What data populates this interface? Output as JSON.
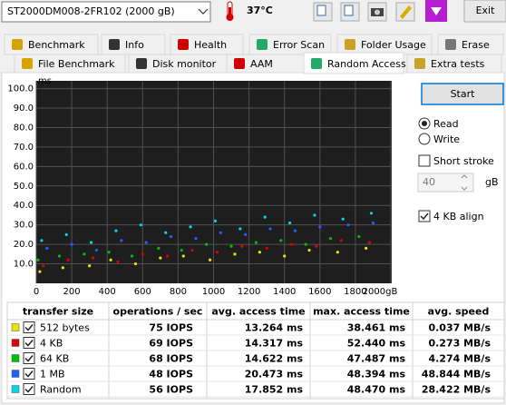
{
  "toolbar": {
    "drive": "ST2000DM008-2FR102 (2000 gB)",
    "temperature": "37°C",
    "exit": "Exit"
  },
  "tabs": {
    "row1": [
      {
        "label": "Benchmark",
        "selected": false
      },
      {
        "label": "Info",
        "selected": false
      },
      {
        "label": "Health",
        "selected": false
      },
      {
        "label": "Error Scan",
        "selected": false
      },
      {
        "label": "Folder Usage",
        "selected": false
      },
      {
        "label": "Erase",
        "selected": false
      }
    ],
    "row2": [
      {
        "label": "File Benchmark",
        "selected": false
      },
      {
        "label": "Disk monitor",
        "selected": false
      },
      {
        "label": "AAM",
        "selected": false
      },
      {
        "label": "Random Access",
        "selected": true
      },
      {
        "label": "Extra tests",
        "selected": false
      }
    ]
  },
  "chart_data": {
    "type": "scatter",
    "y_label": "ms",
    "xlim": [
      0,
      2000
    ],
    "ylim": [
      0,
      104
    ],
    "grid": true,
    "yticks": [
      {
        "value": 10,
        "label": "10.0"
      },
      {
        "value": 20,
        "label": "20.0"
      },
      {
        "value": 30,
        "label": "30.0"
      },
      {
        "value": 40,
        "label": "40.0"
      },
      {
        "value": 50,
        "label": "50.0"
      },
      {
        "value": 60,
        "label": "60.0"
      },
      {
        "value": 70,
        "label": "70.0"
      },
      {
        "value": 80,
        "label": "80.0"
      },
      {
        "value": 90,
        "label": "90.0"
      },
      {
        "value": 100,
        "label": "100.0"
      }
    ],
    "xticks": [
      0,
      200,
      400,
      600,
      800,
      1000,
      1200,
      1400,
      1600,
      1800,
      {
        "value": 2000,
        "label": "2000gB"
      }
    ],
    "series": [
      {
        "name": "512 bytes",
        "color": "#e6e600",
        "checked": true,
        "x": [
          20,
          150,
          300,
          420,
          560,
          700,
          830,
          980,
          1120,
          1260,
          1400,
          1540,
          1700,
          1860
        ],
        "values": [
          6,
          8,
          9,
          12,
          10,
          13,
          14,
          12,
          15,
          16,
          14,
          17,
          16,
          18
        ]
      },
      {
        "name": "4 KB",
        "color": "#e00000",
        "checked": true,
        "x": [
          40,
          180,
          320,
          460,
          600,
          740,
          880,
          1020,
          1160,
          1300,
          1440,
          1580,
          1720,
          1880
        ],
        "values": [
          9,
          12,
          13,
          11,
          15,
          14,
          17,
          16,
          19,
          18,
          20,
          19,
          22,
          21
        ]
      },
      {
        "name": "64 KB",
        "color": "#00c000",
        "checked": true,
        "x": [
          10,
          130,
          270,
          410,
          540,
          690,
          820,
          960,
          1100,
          1240,
          1380,
          1520,
          1660,
          1820
        ],
        "values": [
          12,
          14,
          15,
          16,
          14,
          18,
          17,
          20,
          19,
          21,
          22,
          20,
          23,
          24
        ]
      },
      {
        "name": "1 MB",
        "color": "#2060ff",
        "checked": true,
        "x": [
          60,
          200,
          340,
          480,
          620,
          760,
          900,
          1040,
          1180,
          1320,
          1460,
          1600,
          1760,
          1900
        ],
        "values": [
          18,
          20,
          17,
          22,
          21,
          24,
          23,
          26,
          25,
          28,
          27,
          29,
          30,
          31
        ]
      },
      {
        "name": "Random",
        "color": "#00d8e8",
        "checked": true,
        "x": [
          30,
          170,
          310,
          450,
          590,
          730,
          870,
          1010,
          1150,
          1290,
          1430,
          1570,
          1730,
          1890
        ],
        "values": [
          22,
          25,
          21,
          27,
          30,
          26,
          29,
          32,
          28,
          34,
          31,
          35,
          33,
          36
        ]
      }
    ]
  },
  "controls": {
    "start": "Start",
    "read": {
      "label": "Read",
      "checked": true
    },
    "write": {
      "label": "Write",
      "checked": false
    },
    "short_stroke": {
      "label": "Short stroke",
      "checked": false
    },
    "stroke_size": "40",
    "stroke_unit": "gB",
    "align": {
      "label": "4 KB align",
      "checked": true
    }
  },
  "table": {
    "headers": [
      "transfer size",
      "operations / sec",
      "avg. access time",
      "max. access time",
      "avg. speed"
    ],
    "rows": [
      [
        "75 IOPS",
        "13.264 ms",
        "38.461 ms",
        "0.037 MB/s"
      ],
      [
        "69 IOPS",
        "14.317 ms",
        "52.440 ms",
        "0.273 MB/s"
      ],
      [
        "68 IOPS",
        "14.622 ms",
        "47.487 ms",
        "4.274 MB/s"
      ],
      [
        "48 IOPS",
        "20.473 ms",
        "48.394 ms",
        "48.844 MB/s"
      ],
      [
        "56 IOPS",
        "17.852 ms",
        "48.470 ms",
        "28.422 MB/s"
      ]
    ]
  }
}
